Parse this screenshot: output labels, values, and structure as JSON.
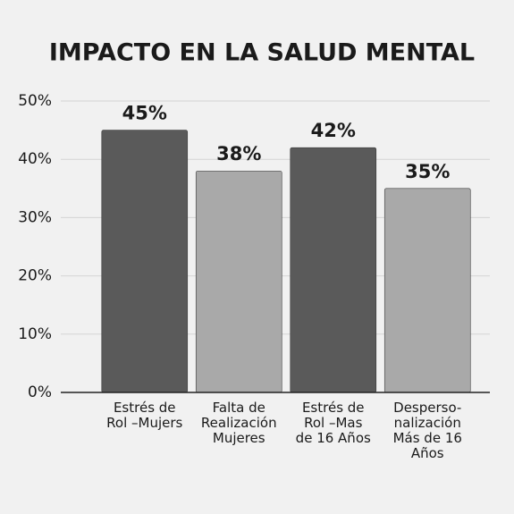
{
  "chart_data": {
    "type": "bar",
    "title": "IMPACTO EN LA SALUD MENTAL",
    "categories": [
      "Estrés de\nRol –Mujers",
      "Falta de\nRealización\nMujeres",
      "Estrés de\nRol –Mas\nde 16 Años",
      "Desperso-\nnalización\nMás de 16\nAños"
    ],
    "values": [
      45,
      38,
      42,
      35
    ],
    "value_labels": [
      "45%",
      "38%",
      "42%",
      "35%"
    ],
    "colors": [
      "#5a5a5a",
      "#a9a9a9",
      "#5a5a5a",
      "#a9a9a9"
    ],
    "ylim": [
      0,
      50
    ],
    "yticks": [
      {
        "value": 0,
        "label": "0%"
      },
      {
        "value": 10,
        "label": "10%"
      },
      {
        "value": 20,
        "label": "20%"
      },
      {
        "value": 30,
        "label": "30%"
      },
      {
        "value": 40,
        "label": "40%"
      },
      {
        "value": 50,
        "label": "50%"
      }
    ],
    "grid": true
  }
}
